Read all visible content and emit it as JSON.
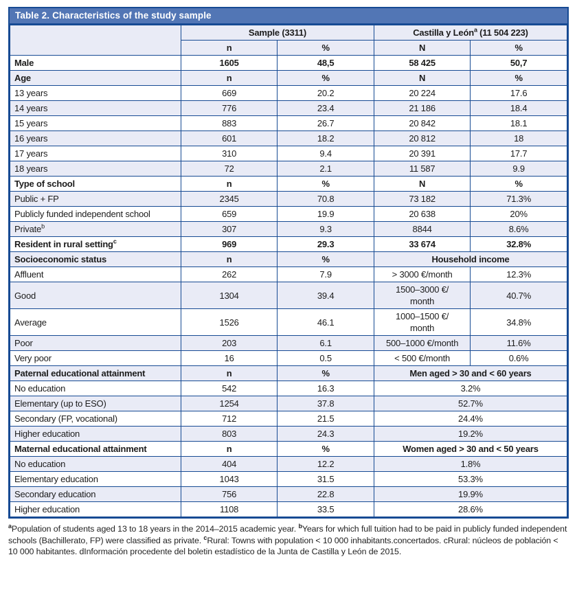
{
  "colors": {
    "title_bar_blue": "#5276b5",
    "border_navy": "#164a93",
    "row_alt_lavender": "#e9ebf6",
    "title_text": "#ffffff"
  },
  "title": {
    "prefix": "Table 2.",
    "rest": "Characteristics of the study sample"
  },
  "header": {
    "sample": "Sample (3311)",
    "region_name": "Castilla y León",
    "region_sup": "a",
    "region_total": " (11 504 223)",
    "sub": [
      "n",
      "%",
      "N",
      "%"
    ]
  },
  "table": {
    "rows": [
      {
        "kind": "bold",
        "label": "Male",
        "cells": [
          "1605",
          "48,5",
          "58 425",
          "50,7"
        ]
      },
      {
        "kind": "header",
        "label": "Age",
        "cells": [
          "n",
          "%",
          "N",
          "%"
        ]
      },
      {
        "kind": "plain",
        "label": "13 years",
        "cells": [
          "669",
          "20.2",
          "20 224",
          "17.6"
        ]
      },
      {
        "kind": "plain",
        "label": "14 years",
        "cells": [
          "776",
          "23.4",
          "21 186",
          "18.4"
        ]
      },
      {
        "kind": "plain",
        "label": "15 years",
        "cells": [
          "883",
          "26.7",
          "20 842",
          "18.1"
        ]
      },
      {
        "kind": "plain",
        "label": "16 years",
        "cells": [
          "601",
          "18.2",
          "20 812",
          "18"
        ]
      },
      {
        "kind": "plain",
        "label": "17 years",
        "cells": [
          "310",
          "9.4",
          "20 391",
          "17.7"
        ]
      },
      {
        "kind": "plain",
        "label": "18 years",
        "cells": [
          "72",
          "2.1",
          "11 587",
          "9.9"
        ]
      },
      {
        "kind": "header",
        "label": "Type of school",
        "cells": [
          "n",
          "%",
          "N",
          "%"
        ]
      },
      {
        "kind": "plain",
        "label": "Public + FP",
        "cells": [
          "2345",
          "70.8",
          "73 182",
          "71.3%"
        ]
      },
      {
        "kind": "plain",
        "label": "Publicly funded independent school",
        "cells": [
          "659",
          "19.9",
          "20 638",
          "20%"
        ]
      },
      {
        "kind": "plain",
        "label": "Private",
        "sup": "b",
        "cells": [
          "307",
          "9.3",
          "8844",
          "8.6%"
        ]
      },
      {
        "kind": "bold",
        "label": "Resident in rural setting",
        "sup": "c",
        "cells": [
          "969",
          "29.3",
          "33 674",
          "32.8%"
        ]
      },
      {
        "kind": "header",
        "label": "Socioeconomic status",
        "cells": [
          "n",
          "%"
        ],
        "span": "Household income"
      },
      {
        "kind": "plain",
        "label": "Affluent",
        "cells": [
          "262",
          "7.9",
          "> 3000 €/month",
          "12.3%"
        ]
      },
      {
        "kind": "plain",
        "label": "Good",
        "cells": [
          "1304",
          "39.4",
          [
            "1500–3000 €/",
            "month"
          ],
          "40.7%"
        ]
      },
      {
        "kind": "plain",
        "label": "Average",
        "cells": [
          "1526",
          "46.1",
          [
            "1000–1500 €/",
            "month"
          ],
          "34.8%"
        ]
      },
      {
        "kind": "plain",
        "label": "Poor",
        "cells": [
          "203",
          "6.1",
          "500–1000 €/month",
          "11.6%"
        ]
      },
      {
        "kind": "plain",
        "label": "Very poor",
        "cells": [
          "16",
          "0.5",
          "< 500 €/month",
          "0.6%"
        ]
      },
      {
        "kind": "header",
        "label": "Paternal educational attainment",
        "cells": [
          "n",
          "%"
        ],
        "span": "Men aged > 30 and < 60 years"
      },
      {
        "kind": "plain",
        "label": "No education",
        "cells": [
          "542",
          "16.3"
        ],
        "span": "3.2%"
      },
      {
        "kind": "plain",
        "label": "Elementary (up to ESO)",
        "cells": [
          "1254",
          "37.8"
        ],
        "span": "52.7%"
      },
      {
        "kind": "plain",
        "label": "Secondary (FP, vocational)",
        "cells": [
          "712",
          "21.5"
        ],
        "span": "24.4%"
      },
      {
        "kind": "plain",
        "label": "Higher education",
        "cells": [
          "803",
          "24.3"
        ],
        "span": "19.2%"
      },
      {
        "kind": "header",
        "label": "Maternal educational attainment",
        "cells": [
          "n",
          "%"
        ],
        "span": "Women aged > 30 and < 50 years"
      },
      {
        "kind": "plain",
        "label": "No education",
        "cells": [
          "404",
          "12.2"
        ],
        "span": "1.8%"
      },
      {
        "kind": "plain",
        "label": "Elementary education",
        "cells": [
          "1043",
          "31.5"
        ],
        "span": "53.3%"
      },
      {
        "kind": "plain",
        "label": "Secondary education",
        "cells": [
          "756",
          "22.8"
        ],
        "span": "19.9%"
      },
      {
        "kind": "plain",
        "label": "Higher education",
        "cells": [
          "1108",
          "33.5"
        ],
        "span": "28.6%"
      }
    ]
  },
  "footnote": {
    "segments": [
      {
        "sup": "a",
        "text": "Population of students aged 13 to 18 years in the 2014–2015 academic year. "
      },
      {
        "sup": "b",
        "text": "Years for which full tuition had to be paid in publicly funded independent schools (Bachillerato, FP) were classified as private. "
      },
      {
        "sup": "c",
        "text": "Rural: Towns with population < 10 000 inhabitants.concertados. cRural: núcleos de población < 10 000 habitantes. dInformación procedente del boletin estadístico de la Junta de Castilla y León de 2015."
      }
    ]
  }
}
